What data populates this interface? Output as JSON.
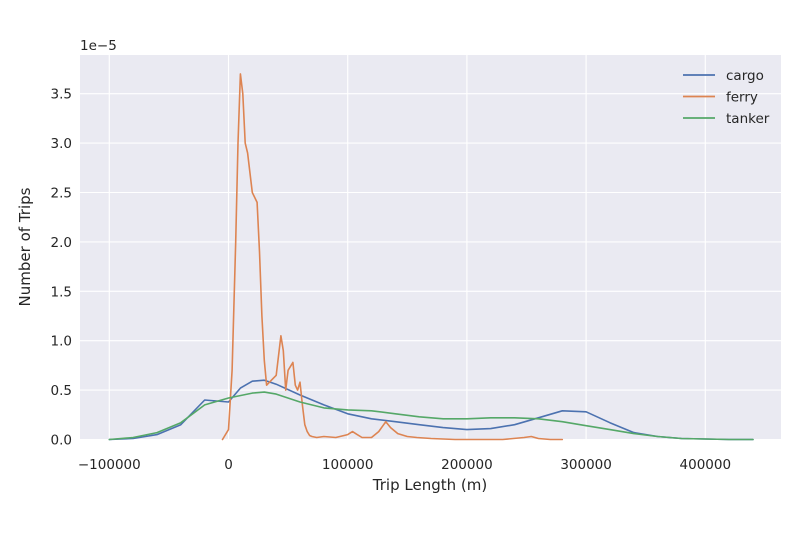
{
  "chart_data": {
    "type": "line",
    "title": "",
    "xlabel": "Trip Length (m)",
    "ylabel": "Number of Trips",
    "y_offset_label": "1e−5",
    "xlim": [
      -120000,
      460000
    ],
    "ylim": [
      0,
      3.85
    ],
    "y_unit_multiplier": "1e-5",
    "x_ticks": [
      -100000,
      0,
      100000,
      200000,
      300000,
      400000
    ],
    "x_tick_labels": [
      "−100000",
      "0",
      "100000",
      "200000",
      "300000",
      "400000"
    ],
    "y_ticks": [
      0,
      0.5,
      1.0,
      1.5,
      2.0,
      2.5,
      3.0,
      3.5
    ],
    "y_tick_labels": [
      "0.0",
      "0.5",
      "1.0",
      "1.5",
      "2.0",
      "2.5",
      "3.0",
      "3.5"
    ],
    "grid": true,
    "legend_position": "top-right",
    "series": [
      {
        "name": "cargo",
        "color": "#4c72b0",
        "x": [
          -100000,
          -80000,
          -60000,
          -40000,
          -20000,
          0,
          10000,
          20000,
          30000,
          40000,
          60000,
          80000,
          100000,
          120000,
          140000,
          160000,
          180000,
          200000,
          220000,
          240000,
          260000,
          280000,
          300000,
          320000,
          340000,
          360000,
          380000,
          400000,
          420000,
          440000
        ],
        "y": [
          0.0,
          0.01,
          0.05,
          0.15,
          0.4,
          0.38,
          0.52,
          0.59,
          0.6,
          0.56,
          0.45,
          0.35,
          0.26,
          0.21,
          0.18,
          0.15,
          0.12,
          0.1,
          0.11,
          0.15,
          0.22,
          0.29,
          0.28,
          0.17,
          0.07,
          0.03,
          0.01,
          0.005,
          0.0,
          0.0
        ]
      },
      {
        "name": "ferry",
        "color": "#dd8452",
        "x": [
          -5000,
          0,
          3000,
          6000,
          8000,
          10000,
          12000,
          14000,
          16000,
          20000,
          24000,
          26000,
          28000,
          30000,
          32000,
          36000,
          40000,
          44000,
          46000,
          48000,
          50000,
          54000,
          56000,
          58000,
          60000,
          62000,
          64000,
          66000,
          68000,
          70000,
          74000,
          80000,
          90000,
          100000,
          104000,
          108000,
          112000,
          120000,
          126000,
          132000,
          136000,
          142000,
          150000,
          158000,
          170000,
          190000,
          210000,
          230000,
          248000,
          254000,
          260000,
          270000,
          280000
        ],
        "y": [
          0.0,
          0.1,
          0.7,
          2.0,
          3.0,
          3.7,
          3.5,
          3.0,
          2.9,
          2.5,
          2.4,
          1.9,
          1.25,
          0.8,
          0.55,
          0.6,
          0.65,
          1.05,
          0.9,
          0.5,
          0.7,
          0.78,
          0.55,
          0.5,
          0.58,
          0.35,
          0.15,
          0.08,
          0.04,
          0.03,
          0.02,
          0.03,
          0.02,
          0.05,
          0.08,
          0.05,
          0.02,
          0.02,
          0.08,
          0.18,
          0.12,
          0.06,
          0.03,
          0.02,
          0.01,
          0.0,
          0.0,
          0.0,
          0.02,
          0.03,
          0.01,
          0.0,
          0.0
        ]
      },
      {
        "name": "tanker",
        "color": "#55a868",
        "x": [
          -100000,
          -80000,
          -60000,
          -40000,
          -20000,
          0,
          20000,
          30000,
          40000,
          60000,
          80000,
          100000,
          120000,
          140000,
          160000,
          180000,
          200000,
          220000,
          240000,
          260000,
          280000,
          300000,
          320000,
          340000,
          360000,
          380000,
          400000,
          420000,
          440000
        ],
        "y": [
          0.0,
          0.02,
          0.07,
          0.17,
          0.35,
          0.42,
          0.47,
          0.48,
          0.46,
          0.38,
          0.32,
          0.3,
          0.29,
          0.26,
          0.23,
          0.21,
          0.21,
          0.22,
          0.22,
          0.21,
          0.18,
          0.14,
          0.1,
          0.06,
          0.03,
          0.01,
          0.005,
          0.0,
          0.0
        ]
      }
    ]
  }
}
